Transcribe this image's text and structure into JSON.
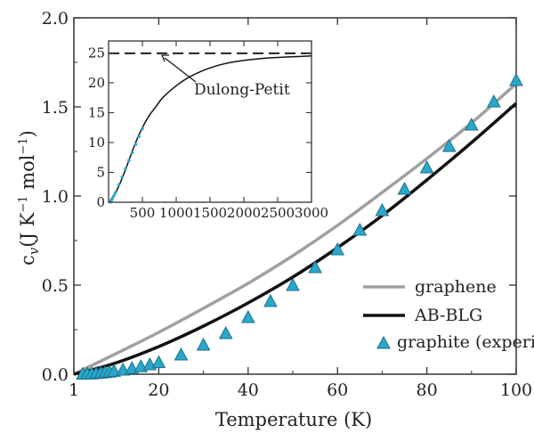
{
  "chart_data": [
    {
      "type": "line",
      "xlabel": "Temperature (K)",
      "ylabel": "c",
      "ylabel_sub": "v",
      "ylabel_unit": "(J K",
      "ylabel_exp1": "−1",
      "ylabel_mol": " mol",
      "ylabel_exp2": "−1",
      "ylabel_close": ")",
      "xlim": [
        1,
        100
      ],
      "ylim": [
        0.0,
        2.0
      ],
      "xticks": [
        1,
        20,
        40,
        60,
        80,
        100
      ],
      "yticks": [
        "0.0",
        "0.5",
        "1.0",
        "1.5",
        "2.0"
      ],
      "legend_position": "bottom-right",
      "series": [
        {
          "name": "graphene",
          "kind": "line",
          "color": "#a0a0a0",
          "x": [
            1,
            10,
            20,
            30,
            40,
            50,
            60,
            70,
            80,
            90,
            100
          ],
          "y": [
            0.0,
            0.11,
            0.235,
            0.37,
            0.51,
            0.665,
            0.835,
            1.02,
            1.21,
            1.41,
            1.63
          ]
        },
        {
          "name": "AB-BLG",
          "kind": "line",
          "color": "#111111",
          "x": [
            1,
            10,
            20,
            30,
            40,
            50,
            60,
            70,
            80,
            90,
            100
          ],
          "y": [
            0.0,
            0.06,
            0.155,
            0.27,
            0.4,
            0.545,
            0.71,
            0.89,
            1.09,
            1.3,
            1.52
          ]
        },
        {
          "name": "graphite (experiment)",
          "kind": "marker",
          "marker": "triangle",
          "color": "#2aa8cc",
          "x": [
            3,
            4,
            5,
            6,
            7,
            8,
            9,
            10,
            12,
            14,
            16,
            18,
            20,
            25,
            30,
            35,
            40,
            45,
            50,
            55,
            60,
            65,
            70,
            75,
            80,
            85,
            90,
            95,
            100
          ],
          "y": [
            0.002,
            0.003,
            0.004,
            0.006,
            0.008,
            0.011,
            0.014,
            0.018,
            0.025,
            0.034,
            0.044,
            0.055,
            0.067,
            0.11,
            0.165,
            0.23,
            0.32,
            0.41,
            0.5,
            0.6,
            0.7,
            0.81,
            0.92,
            1.04,
            1.16,
            1.28,
            1.4,
            1.53,
            1.65
          ]
        }
      ]
    },
    {
      "type": "line",
      "inset": true,
      "xlim": [
        0,
        3000
      ],
      "ylim": [
        0,
        27
      ],
      "xticks": [
        500,
        1000,
        1500,
        2000,
        2500,
        3000
      ],
      "yticks": [
        0,
        5,
        10,
        15,
        20,
        25
      ],
      "annotation": "Dulong-Petit",
      "series": [
        {
          "kind": "line",
          "color": "#111111",
          "x": [
            0,
            100,
            200,
            300,
            400,
            500,
            600,
            700,
            800,
            1000,
            1200,
            1500,
            1800,
            2200,
            2600,
            3000
          ],
          "y": [
            0,
            1.5,
            4.0,
            7.0,
            10.0,
            12.5,
            14.5,
            16.0,
            17.5,
            19.5,
            21.0,
            22.5,
            23.4,
            24.0,
            24.3,
            24.5
          ]
        },
        {
          "kind": "line",
          "style": "dashed",
          "color": "#111111",
          "x": [
            0,
            3000
          ],
          "y": [
            24.94,
            24.94
          ]
        },
        {
          "kind": "marker",
          "color": "#2aa8cc",
          "x": [
            20,
            40,
            60,
            80,
            100,
            150,
            200,
            250,
            300,
            350,
            400,
            450,
            500
          ],
          "y": [
            0.07,
            0.3,
            0.7,
            1.1,
            1.6,
            2.9,
            4.2,
            5.6,
            7.0,
            8.3,
            9.7,
            11.0,
            12.3
          ]
        }
      ]
    }
  ]
}
